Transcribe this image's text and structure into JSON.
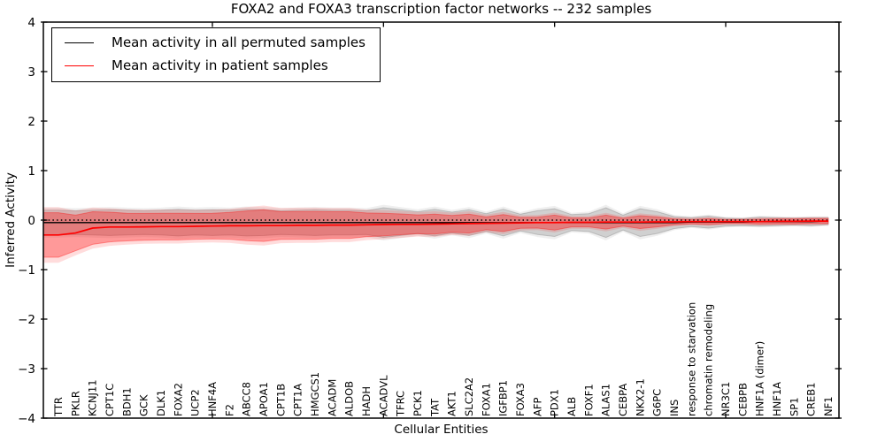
{
  "title": "FOXA2 and FOXA3 transcription factor networks -- 232 samples",
  "xlabel": "Cellular Entities",
  "ylabel": "Inferred Activity",
  "legend": {
    "permuted": "Mean activity in all permuted samples",
    "patient": "Mean activity in patient samples"
  },
  "colors": {
    "permuted_line": "#000000",
    "patient_line": "#ff0000",
    "permuted_band": "rgba(130,130,130,0.28)",
    "permuted_band_outer": "rgba(130,130,130,0.13)",
    "patient_band": "rgba(255,0,0,0.30)",
    "patient_band_outer": "rgba(255,40,40,0.16)",
    "zero_line": "#000000",
    "axis": "#000000"
  },
  "chart_data": {
    "type": "line",
    "title": "FOXA2 and FOXA3 transcription factor networks -- 232 samples",
    "xlabel": "Cellular Entities",
    "ylabel": "Inferred Activity",
    "ylim": [
      -4,
      4
    ],
    "ytick_values": [
      4,
      3,
      2,
      1,
      0,
      -1,
      -2,
      -3,
      -4
    ],
    "ytick_labels": [
      "4",
      "3",
      "2",
      "1",
      "0",
      "−1",
      "−2",
      "−3",
      "−4"
    ],
    "xtick_indices": [
      9,
      19,
      29,
      39
    ],
    "grid": false,
    "legend_position": "upper left",
    "zero_line": 0,
    "categories": [
      "TTR",
      "PKLR",
      "KCNJ11",
      "CPT1C",
      "BDH1",
      "GCK",
      "DLK1",
      "FOXA2",
      "UCP2",
      "HNF4A",
      "F2",
      "ABCC8",
      "APOA1",
      "CPT1B",
      "CPT1A",
      "HMGCS1",
      "ACADM",
      "ALDOB",
      "HADH",
      "ACADVL",
      "TFRC",
      "PCK1",
      "TAT",
      "AKT1",
      "SLC2A2",
      "FOXA1",
      "IGFBP1",
      "FOXA3",
      "AFP",
      "PDX1",
      "ALB",
      "FOXF1",
      "ALAS1",
      "CEBPA",
      "NKX2-1",
      "G6PC",
      "INS",
      "response to starvation",
      "chromatin remodeling",
      "NR3C1",
      "CEBPB",
      "HNF1A (dimer)",
      "HNF1A",
      "SP1",
      "CREB1",
      "NF1"
    ],
    "series": [
      {
        "name": "Mean activity in all permuted samples",
        "color": "#000000",
        "values": [
          -0.05,
          -0.05,
          -0.05,
          -0.05,
          -0.05,
          -0.05,
          -0.05,
          -0.05,
          -0.05,
          -0.05,
          -0.05,
          -0.05,
          -0.05,
          -0.05,
          -0.05,
          -0.05,
          -0.05,
          -0.05,
          -0.05,
          -0.05,
          -0.05,
          -0.05,
          -0.05,
          -0.05,
          -0.05,
          -0.05,
          -0.05,
          -0.05,
          -0.05,
          -0.05,
          -0.05,
          -0.05,
          -0.05,
          -0.05,
          -0.05,
          -0.05,
          -0.05,
          -0.04,
          -0.04,
          -0.04,
          -0.04,
          -0.03,
          -0.03,
          -0.03,
          -0.03,
          -0.02
        ],
        "std": [
          0.25,
          0.24,
          0.25,
          0.26,
          0.25,
          0.24,
          0.25,
          0.27,
          0.25,
          0.26,
          0.25,
          0.27,
          0.26,
          0.24,
          0.25,
          0.26,
          0.25,
          0.25,
          0.24,
          0.3,
          0.26,
          0.22,
          0.27,
          0.21,
          0.26,
          0.18,
          0.27,
          0.17,
          0.24,
          0.28,
          0.16,
          0.18,
          0.3,
          0.15,
          0.28,
          0.22,
          0.12,
          0.09,
          0.12,
          0.08,
          0.07,
          0.09,
          0.08,
          0.07,
          0.08,
          0.07
        ]
      },
      {
        "name": "Mean activity in patient samples",
        "color": "#ff0000",
        "values": [
          -0.3,
          -0.26,
          -0.16,
          -0.14,
          -0.14,
          -0.135,
          -0.13,
          -0.13,
          -0.125,
          -0.12,
          -0.115,
          -0.115,
          -0.11,
          -0.11,
          -0.105,
          -0.105,
          -0.1,
          -0.1,
          -0.095,
          -0.09,
          -0.085,
          -0.085,
          -0.08,
          -0.075,
          -0.07,
          -0.065,
          -0.06,
          -0.055,
          -0.05,
          -0.05,
          -0.045,
          -0.045,
          -0.04,
          -0.04,
          -0.04,
          -0.035,
          -0.035,
          -0.03,
          -0.03,
          -0.03,
          -0.03,
          -0.03,
          -0.025,
          -0.025,
          -0.02,
          -0.02
        ],
        "std": [
          0.45,
          0.36,
          0.33,
          0.3,
          0.28,
          0.27,
          0.27,
          0.27,
          0.26,
          0.26,
          0.27,
          0.3,
          0.32,
          0.28,
          0.28,
          0.28,
          0.27,
          0.27,
          0.24,
          0.23,
          0.21,
          0.19,
          0.2,
          0.17,
          0.19,
          0.13,
          0.17,
          0.11,
          0.11,
          0.15,
          0.09,
          0.09,
          0.14,
          0.08,
          0.13,
          0.1,
          0.06,
          0.045,
          0.06,
          0.04,
          0.04,
          0.05,
          0.05,
          0.05,
          0.05,
          0.05
        ]
      }
    ]
  }
}
